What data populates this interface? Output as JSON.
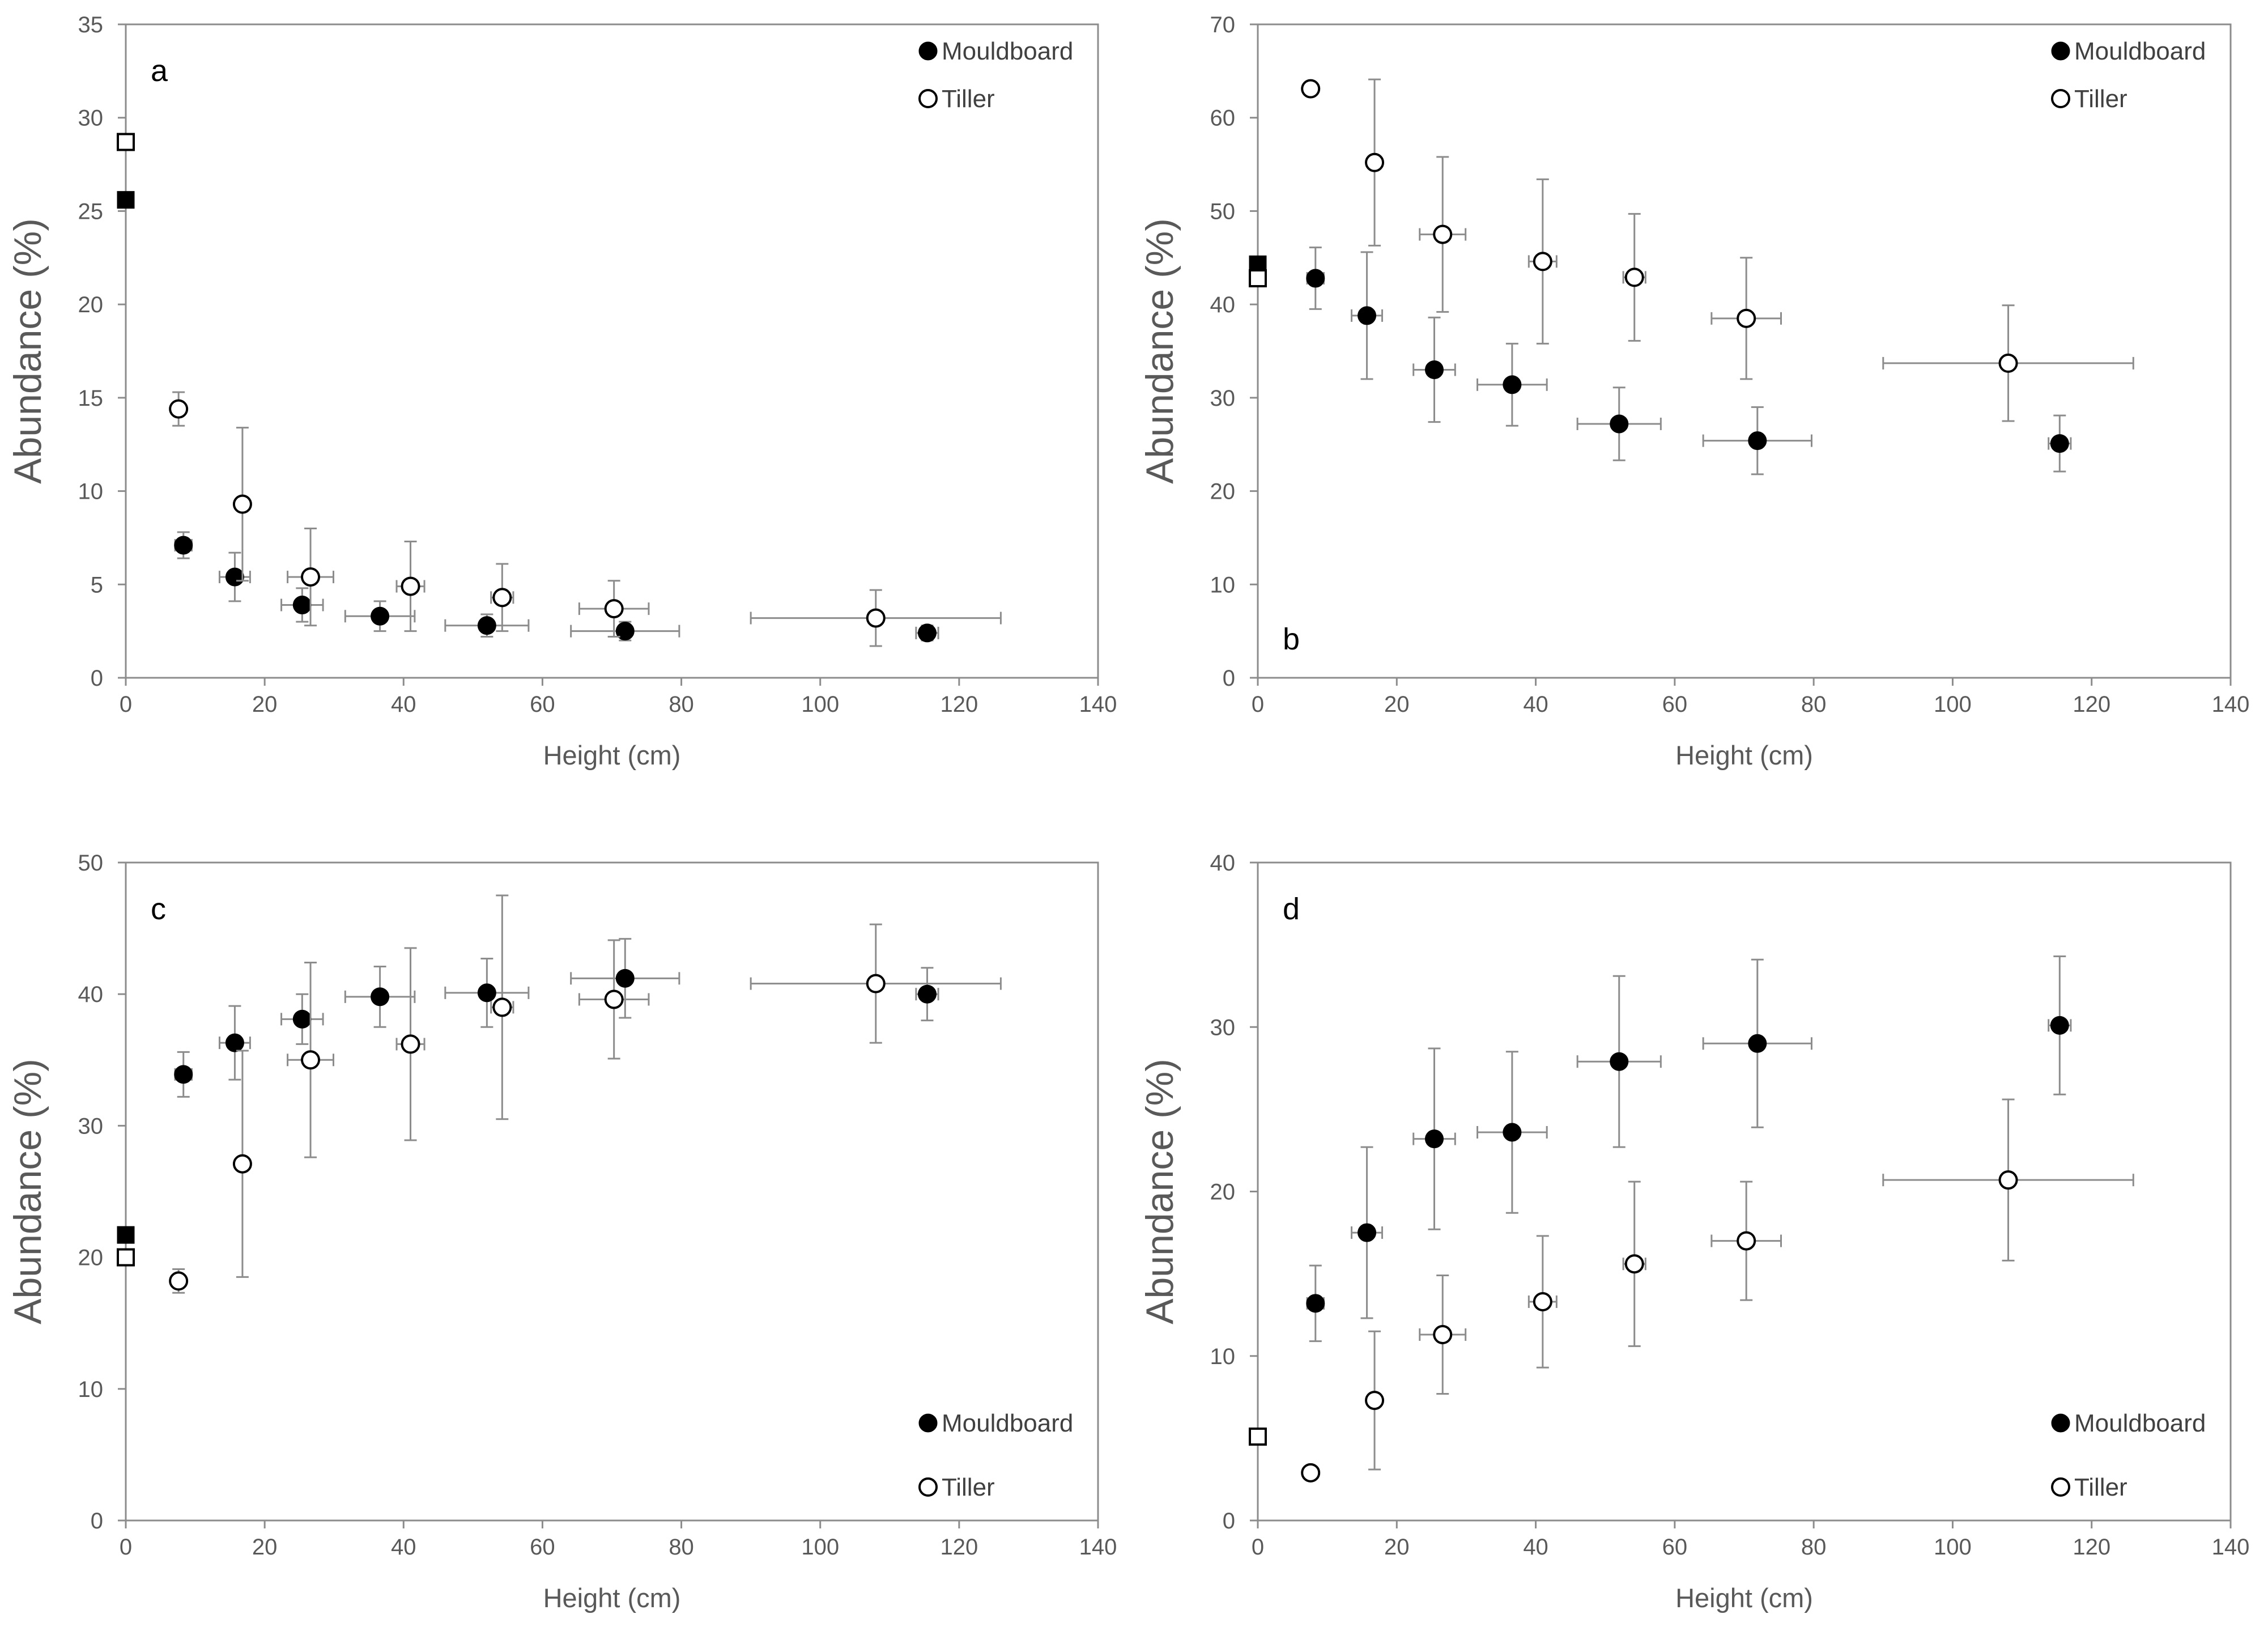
{
  "chart_data": [
    {
      "type": "scatter",
      "panel": "a",
      "xlabel": "Height (cm)",
      "ylabel": "Abundance (%)",
      "xlim": [
        0,
        140
      ],
      "ylim": [
        0,
        35
      ],
      "xticks": [
        0,
        20,
        40,
        60,
        80,
        100,
        120,
        140
      ],
      "yticks": [
        0,
        5,
        10,
        15,
        20,
        25,
        30,
        35
      ],
      "legend": {
        "position": "top-right",
        "entries": [
          "Mouldboard",
          "Tiller"
        ]
      },
      "series": [
        {
          "name": "Mouldboard",
          "marker": "filled-circle",
          "points": [
            {
              "x": 8.3,
              "y": 7.1,
              "xerr": 1.2,
              "yerr": 0.7
            },
            {
              "x": 15.7,
              "y": 5.4,
              "xerr": 2.2,
              "yerr": 1.3
            },
            {
              "x": 25.4,
              "y": 3.9,
              "xerr": 3.0,
              "yerr": 0.9
            },
            {
              "x": 36.6,
              "y": 3.3,
              "xerr": 5.0,
              "yerr": 0.8
            },
            {
              "x": 52.0,
              "y": 2.8,
              "xerr": 6.0,
              "yerr": 0.6
            },
            {
              "x": 71.9,
              "y": 2.5,
              "xerr": 7.8,
              "yerr": 0.5
            },
            {
              "x": 115.4,
              "y": 2.4,
              "xerr": 1.6,
              "yerr": 0.4
            }
          ]
        },
        {
          "name": "Tiller",
          "marker": "open-circle",
          "points": [
            {
              "x": 7.6,
              "y": 14.4,
              "xerr": 0,
              "yerr": 0.9
            },
            {
              "x": 16.8,
              "y": 9.3,
              "xerr": 0,
              "yerr": 4.1
            },
            {
              "x": 26.6,
              "y": 5.4,
              "xerr": 3.3,
              "yerr": 2.6
            },
            {
              "x": 41.0,
              "y": 4.9,
              "xerr": 2.0,
              "yerr": 2.4
            },
            {
              "x": 54.2,
              "y": 4.3,
              "xerr": 1.6,
              "yerr": 1.8
            },
            {
              "x": 70.3,
              "y": 3.7,
              "xerr": 5.0,
              "yerr": 1.5
            },
            {
              "x": 108.0,
              "y": 3.2,
              "xerr": 18.0,
              "yerr": 1.5
            }
          ]
        },
        {
          "name": "Mouldboard (0 cm)",
          "marker": "filled-square",
          "points": [
            {
              "x": 0,
              "y": 25.6
            }
          ]
        },
        {
          "name": "Tiller (0 cm)",
          "marker": "open-square",
          "points": [
            {
              "x": 0,
              "y": 28.7
            }
          ]
        }
      ]
    },
    {
      "type": "scatter",
      "panel": "b",
      "xlabel": "Height (cm)",
      "ylabel": "Abundance (%)",
      "xlim": [
        0,
        140
      ],
      "ylim": [
        0,
        70
      ],
      "xticks": [
        0,
        20,
        40,
        60,
        80,
        100,
        120,
        140
      ],
      "yticks": [
        0,
        10,
        20,
        30,
        40,
        50,
        60,
        70
      ],
      "legend": {
        "position": "top-right",
        "entries": [
          "Mouldboard",
          "Tiller"
        ]
      },
      "series": [
        {
          "name": "Mouldboard",
          "marker": "filled-circle",
          "points": [
            {
              "x": 8.3,
              "y": 42.8,
              "xerr": 1.2,
              "yerr": 3.3
            },
            {
              "x": 15.7,
              "y": 38.8,
              "xerr": 2.2,
              "yerr": 6.8
            },
            {
              "x": 25.4,
              "y": 33.0,
              "xerr": 3.0,
              "yerr": 5.6
            },
            {
              "x": 36.6,
              "y": 31.4,
              "xerr": 5.0,
              "yerr": 4.4
            },
            {
              "x": 52.0,
              "y": 27.2,
              "xerr": 6.0,
              "yerr": 3.9
            },
            {
              "x": 71.9,
              "y": 25.4,
              "xerr": 7.8,
              "yerr": 3.6
            },
            {
              "x": 115.4,
              "y": 25.1,
              "xerr": 1.6,
              "yerr": 3.0
            }
          ]
        },
        {
          "name": "Tiller",
          "marker": "open-circle",
          "points": [
            {
              "x": 7.6,
              "y": 63.1,
              "xerr": 0,
              "yerr": 0
            },
            {
              "x": 16.8,
              "y": 55.2,
              "xerr": 0,
              "yerr": 8.9
            },
            {
              "x": 26.6,
              "y": 47.5,
              "xerr": 3.3,
              "yerr": 8.3
            },
            {
              "x": 41.0,
              "y": 44.6,
              "xerr": 2.0,
              "yerr": 8.8
            },
            {
              "x": 54.2,
              "y": 42.9,
              "xerr": 1.6,
              "yerr": 6.8
            },
            {
              "x": 70.3,
              "y": 38.5,
              "xerr": 5.0,
              "yerr": 6.5
            },
            {
              "x": 108.0,
              "y": 33.7,
              "xerr": 18.0,
              "yerr": 6.2
            }
          ]
        },
        {
          "name": "Mouldboard (0 cm)",
          "marker": "filled-square",
          "points": [
            {
              "x": 0,
              "y": 44.3
            }
          ]
        },
        {
          "name": "Tiller (0 cm)",
          "marker": "open-square",
          "points": [
            {
              "x": 0,
              "y": 42.8
            }
          ]
        }
      ]
    },
    {
      "type": "scatter",
      "panel": "c",
      "xlabel": "Height (cm)",
      "ylabel": "Abundance (%)",
      "xlim": [
        0,
        140
      ],
      "ylim": [
        0,
        50
      ],
      "xticks": [
        0,
        20,
        40,
        60,
        80,
        100,
        120,
        140
      ],
      "yticks": [
        0,
        10,
        20,
        30,
        40,
        50
      ],
      "legend": {
        "position": "bottom-right",
        "entries": [
          "Mouldboard",
          "Tiller"
        ]
      },
      "series": [
        {
          "name": "Mouldboard",
          "marker": "filled-circle",
          "points": [
            {
              "x": 8.3,
              "y": 33.9,
              "xerr": 1.2,
              "yerr": 1.7
            },
            {
              "x": 15.7,
              "y": 36.3,
              "xerr": 2.2,
              "yerr": 2.8
            },
            {
              "x": 25.4,
              "y": 38.1,
              "xerr": 3.0,
              "yerr": 1.9
            },
            {
              "x": 36.6,
              "y": 39.8,
              "xerr": 5.0,
              "yerr": 2.3
            },
            {
              "x": 52.0,
              "y": 40.1,
              "xerr": 6.0,
              "yerr": 2.6
            },
            {
              "x": 71.9,
              "y": 41.2,
              "xerr": 7.8,
              "yerr": 3.0
            },
            {
              "x": 115.4,
              "y": 40.0,
              "xerr": 1.6,
              "yerr": 2.0
            }
          ]
        },
        {
          "name": "Tiller",
          "marker": "open-circle",
          "points": [
            {
              "x": 7.6,
              "y": 18.2,
              "xerr": 0,
              "yerr": 0.9
            },
            {
              "x": 16.8,
              "y": 27.1,
              "xerr": 0,
              "yerr": 8.6
            },
            {
              "x": 26.6,
              "y": 35.0,
              "xerr": 3.3,
              "yerr": 7.4
            },
            {
              "x": 41.0,
              "y": 36.2,
              "xerr": 2.0,
              "yerr": 7.3
            },
            {
              "x": 54.2,
              "y": 39.0,
              "xerr": 1.6,
              "yerr": 8.5
            },
            {
              "x": 70.3,
              "y": 39.6,
              "xerr": 5.0,
              "yerr": 4.5
            },
            {
              "x": 108.0,
              "y": 40.8,
              "xerr": 18.0,
              "yerr": 4.5
            }
          ]
        },
        {
          "name": "Mouldboard (0 cm)",
          "marker": "filled-square",
          "points": [
            {
              "x": 0,
              "y": 21.7
            }
          ]
        },
        {
          "name": "Tiller (0 cm)",
          "marker": "open-square",
          "points": [
            {
              "x": 0,
              "y": 20.0
            }
          ]
        }
      ]
    },
    {
      "type": "scatter",
      "panel": "d",
      "xlabel": "Height (cm)",
      "ylabel": "Abundance (%)",
      "xlim": [
        0,
        140
      ],
      "ylim": [
        0,
        40
      ],
      "xticks": [
        0,
        20,
        40,
        60,
        80,
        100,
        120,
        140
      ],
      "yticks": [
        0,
        10,
        20,
        30,
        40
      ],
      "legend": {
        "position": "bottom-right",
        "entries": [
          "Mouldboard",
          "Tiller"
        ]
      },
      "series": [
        {
          "name": "Mouldboard",
          "marker": "filled-circle",
          "points": [
            {
              "x": 8.3,
              "y": 13.2,
              "xerr": 1.2,
              "yerr": 2.3
            },
            {
              "x": 15.7,
              "y": 17.5,
              "xerr": 2.2,
              "yerr": 5.2
            },
            {
              "x": 25.4,
              "y": 23.2,
              "xerr": 3.0,
              "yerr": 5.5
            },
            {
              "x": 36.6,
              "y": 23.6,
              "xerr": 5.0,
              "yerr": 4.9
            },
            {
              "x": 52.0,
              "y": 27.9,
              "xerr": 6.0,
              "yerr": 5.2
            },
            {
              "x": 71.9,
              "y": 29.0,
              "xerr": 7.8,
              "yerr": 5.1
            },
            {
              "x": 115.4,
              "y": 30.1,
              "xerr": 1.6,
              "yerr": 4.2
            }
          ]
        },
        {
          "name": "Tiller",
          "marker": "open-circle",
          "points": [
            {
              "x": 7.6,
              "y": 2.9,
              "xerr": 0,
              "yerr": 0
            },
            {
              "x": 16.8,
              "y": 7.3,
              "xerr": 0,
              "yerr": 4.2
            },
            {
              "x": 26.6,
              "y": 11.3,
              "xerr": 3.3,
              "yerr": 3.6
            },
            {
              "x": 41.0,
              "y": 13.3,
              "xerr": 2.0,
              "yerr": 4.0
            },
            {
              "x": 54.2,
              "y": 15.6,
              "xerr": 1.6,
              "yerr": 5.0
            },
            {
              "x": 70.3,
              "y": 17.0,
              "xerr": 5.0,
              "yerr": 3.6
            },
            {
              "x": 108.0,
              "y": 20.7,
              "xerr": 18.0,
              "yerr": 4.9
            }
          ]
        },
        {
          "name": "Mouldboard (0 cm)",
          "marker": "filled-square",
          "points": [
            {
              "x": 0,
              "y": 5.1
            }
          ]
        },
        {
          "name": "Tiller (0 cm)",
          "marker": "open-square",
          "points": [
            {
              "x": 0,
              "y": 5.1
            }
          ]
        }
      ]
    }
  ]
}
